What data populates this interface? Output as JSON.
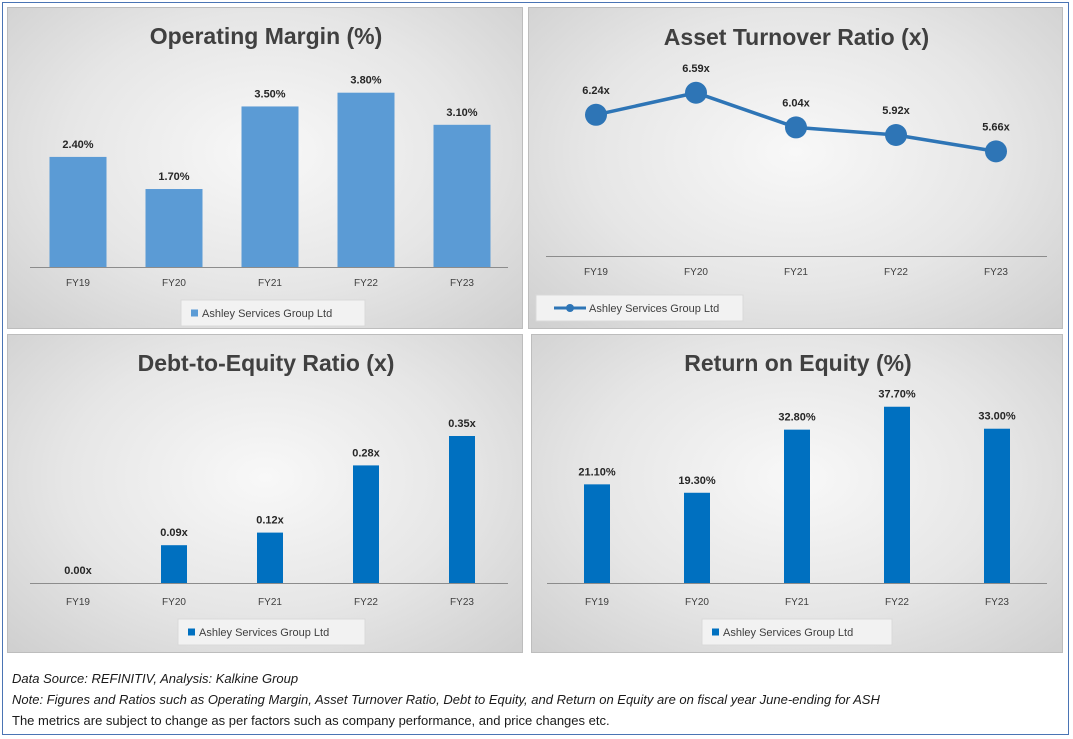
{
  "colors": {
    "light_blue": "#5b9bd5",
    "blue": "#0070c0",
    "line_blue": "#2e75b6",
    "frame": "#4a74b4"
  },
  "chart_data": [
    {
      "id": "operating-margin",
      "type": "bar",
      "title": "Operating Margin (%)",
      "categories": [
        "FY19",
        "FY20",
        "FY21",
        "FY22",
        "FY23"
      ],
      "series": [
        {
          "name": "Ashley Services Group Ltd",
          "values": [
            2.4,
            1.7,
            3.5,
            3.8,
            3.1
          ],
          "labels": [
            "2.40%",
            "1.70%",
            "3.50%",
            "3.80%",
            "3.10%"
          ]
        }
      ],
      "ylim": [
        0,
        4.6
      ],
      "color": "#5b9bd5",
      "legend": "bottom",
      "grid": false
    },
    {
      "id": "asset-turnover",
      "type": "line",
      "title": "Asset Turnover Ratio (x)",
      "categories": [
        "FY19",
        "FY20",
        "FY21",
        "FY22",
        "FY23"
      ],
      "series": [
        {
          "name": "Ashley Services Group Ltd",
          "values": [
            6.24,
            6.59,
            6.04,
            5.92,
            5.66
          ],
          "labels": [
            "6.24x",
            "6.59x",
            "6.04x",
            "5.92x",
            "5.66x"
          ]
        }
      ],
      "ylim": [
        4.0,
        7.3
      ],
      "color": "#2e75b6",
      "legend": "bottom-left",
      "grid": false
    },
    {
      "id": "debt-to-equity",
      "type": "bar",
      "title": "Debt-to-Equity Ratio (x)",
      "categories": [
        "FY19",
        "FY20",
        "FY21",
        "FY22",
        "FY23"
      ],
      "series": [
        {
          "name": "Ashley Services Group Ltd",
          "values": [
            0.0,
            0.09,
            0.12,
            0.28,
            0.35
          ],
          "labels": [
            "0.00x",
            "0.09x",
            "0.12x",
            "0.28x",
            "0.35x"
          ]
        }
      ],
      "ylim": [
        0,
        0.4
      ],
      "color": "#0070c0",
      "legend": "bottom",
      "grid": false
    },
    {
      "id": "return-on-equity",
      "type": "bar",
      "title": "Return on Equity (%)",
      "categories": [
        "FY19",
        "FY20",
        "FY21",
        "FY22",
        "FY23"
      ],
      "series": [
        {
          "name": "Ashley Services Group Ltd",
          "values": [
            21.1,
            19.3,
            32.8,
            37.7,
            33.0
          ],
          "labels": [
            "21.10%",
            "19.30%",
            "32.80%",
            "37.70%",
            "33.00%"
          ]
        }
      ],
      "ylim": [
        0,
        38.5
      ],
      "color": "#0070c0",
      "legend": "bottom",
      "grid": false
    }
  ],
  "footer": {
    "source": "Data Source: REFINITIV, Analysis: Kalkine Group",
    "note": "Note: Figures and Ratios such as Operating Margin, Asset Turnover Ratio, Debt to Equity, and Return on Equity are on fiscal year June-ending for ASH",
    "disclaimer": "The metrics are subject to change as per factors such as company performance, and price changes etc."
  }
}
